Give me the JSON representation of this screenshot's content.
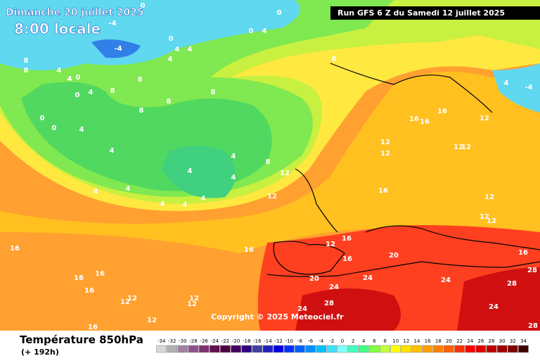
{
  "header": {
    "date": "Dimanche 20 juillet 2025",
    "time": "8:00 locale",
    "run": "Run GFS 6 Z du Samedi 12 juillet 2025"
  },
  "copyright": "Copyright © 2025 Meteociel.fr",
  "footer": {
    "title": "Température 850hPa",
    "lead": "(+ 192h)"
  },
  "scale": {
    "values": [
      -34,
      -32,
      -30,
      -28,
      -26,
      -24,
      -22,
      -20,
      -18,
      -16,
      -14,
      -12,
      -10,
      -8,
      -6,
      -4,
      -2,
      0,
      2,
      4,
      6,
      8,
      10,
      12,
      14,
      16,
      18,
      20,
      22,
      24,
      26,
      28,
      30,
      32,
      34
    ],
    "colors": [
      "#d8d8d8",
      "#b0b0b0",
      "#a080a0",
      "#905090",
      "#803070",
      "#601050",
      "#500040",
      "#400060",
      "#300080",
      "#4040a0",
      "#2020c0",
      "#0000e0",
      "#0030ff",
      "#0060ff",
      "#0090ff",
      "#00c0ff",
      "#40e0ff",
      "#80ffff",
      "#40ffc0",
      "#40ff80",
      "#80ff40",
      "#c0ff40",
      "#ffff00",
      "#ffe000",
      "#ffc000",
      "#ffa000",
      "#ff8000",
      "#ff6000",
      "#ff3000",
      "#ff0000",
      "#e00000",
      "#c00000",
      "#a00000",
      "#800000",
      "#400000"
    ]
  },
  "contour_labels": [
    0,
    0,
    -4,
    0,
    0,
    4,
    -4,
    4,
    4,
    4,
    8,
    8,
    8,
    4,
    4,
    0,
    8,
    0,
    8,
    4,
    8,
    8,
    8,
    0,
    0,
    4,
    4,
    4,
    8,
    4,
    4,
    4,
    4,
    4,
    4,
    4,
    12,
    12,
    16,
    16,
    16,
    12,
    12,
    12,
    12,
    12,
    16,
    12,
    12,
    12,
    16,
    16,
    16,
    12,
    16,
    20,
    16,
    16,
    16,
    16,
    20,
    24,
    24,
    28,
    28,
    24,
    28,
    24,
    24,
    12,
    12,
    12,
    12,
    12,
    16,
    28,
    -4,
    4
  ]
}
